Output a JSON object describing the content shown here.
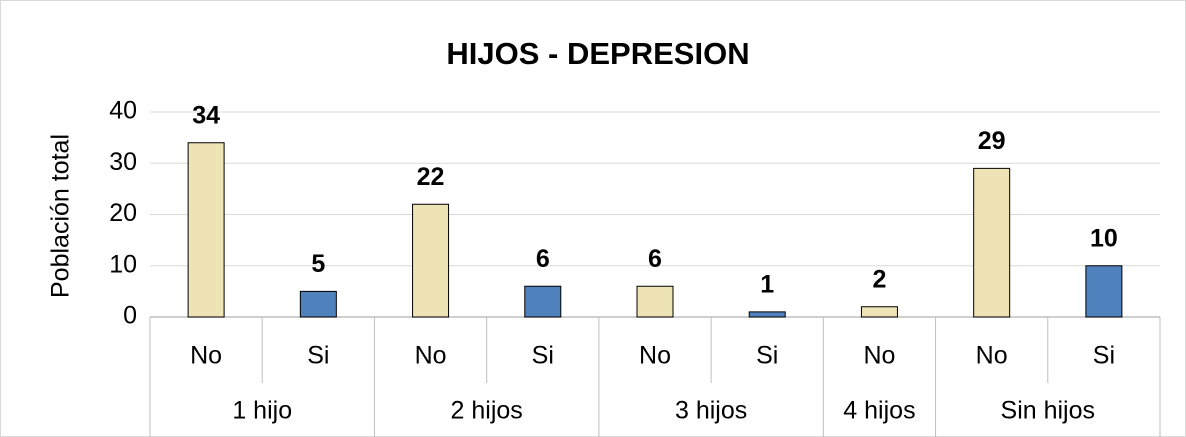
{
  "chart_data": {
    "type": "bar",
    "title": "HIJOS - DEPRESION",
    "ylabel": "Población total",
    "groups": [
      {
        "label": "1 hijo",
        "categories": [
          "No",
          "Si"
        ],
        "values": [
          34,
          5
        ]
      },
      {
        "label": "2 hijos",
        "categories": [
          "No",
          "Si"
        ],
        "values": [
          22,
          6
        ]
      },
      {
        "label": "3 hijos",
        "categories": [
          "No",
          "Si"
        ],
        "values": [
          6,
          1
        ]
      },
      {
        "label": "4 hijos",
        "categories": [
          "No"
        ],
        "values": [
          2
        ]
      },
      {
        "label": "Sin hijos",
        "categories": [
          "No",
          "Si"
        ],
        "values": [
          29,
          10
        ]
      }
    ],
    "category_colors": {
      "No": "#eee3b5",
      "Si": "#4f81bd"
    },
    "ylim": [
      0,
      40
    ],
    "yticks": [
      0,
      10,
      20,
      30,
      40
    ],
    "grid": true
  }
}
